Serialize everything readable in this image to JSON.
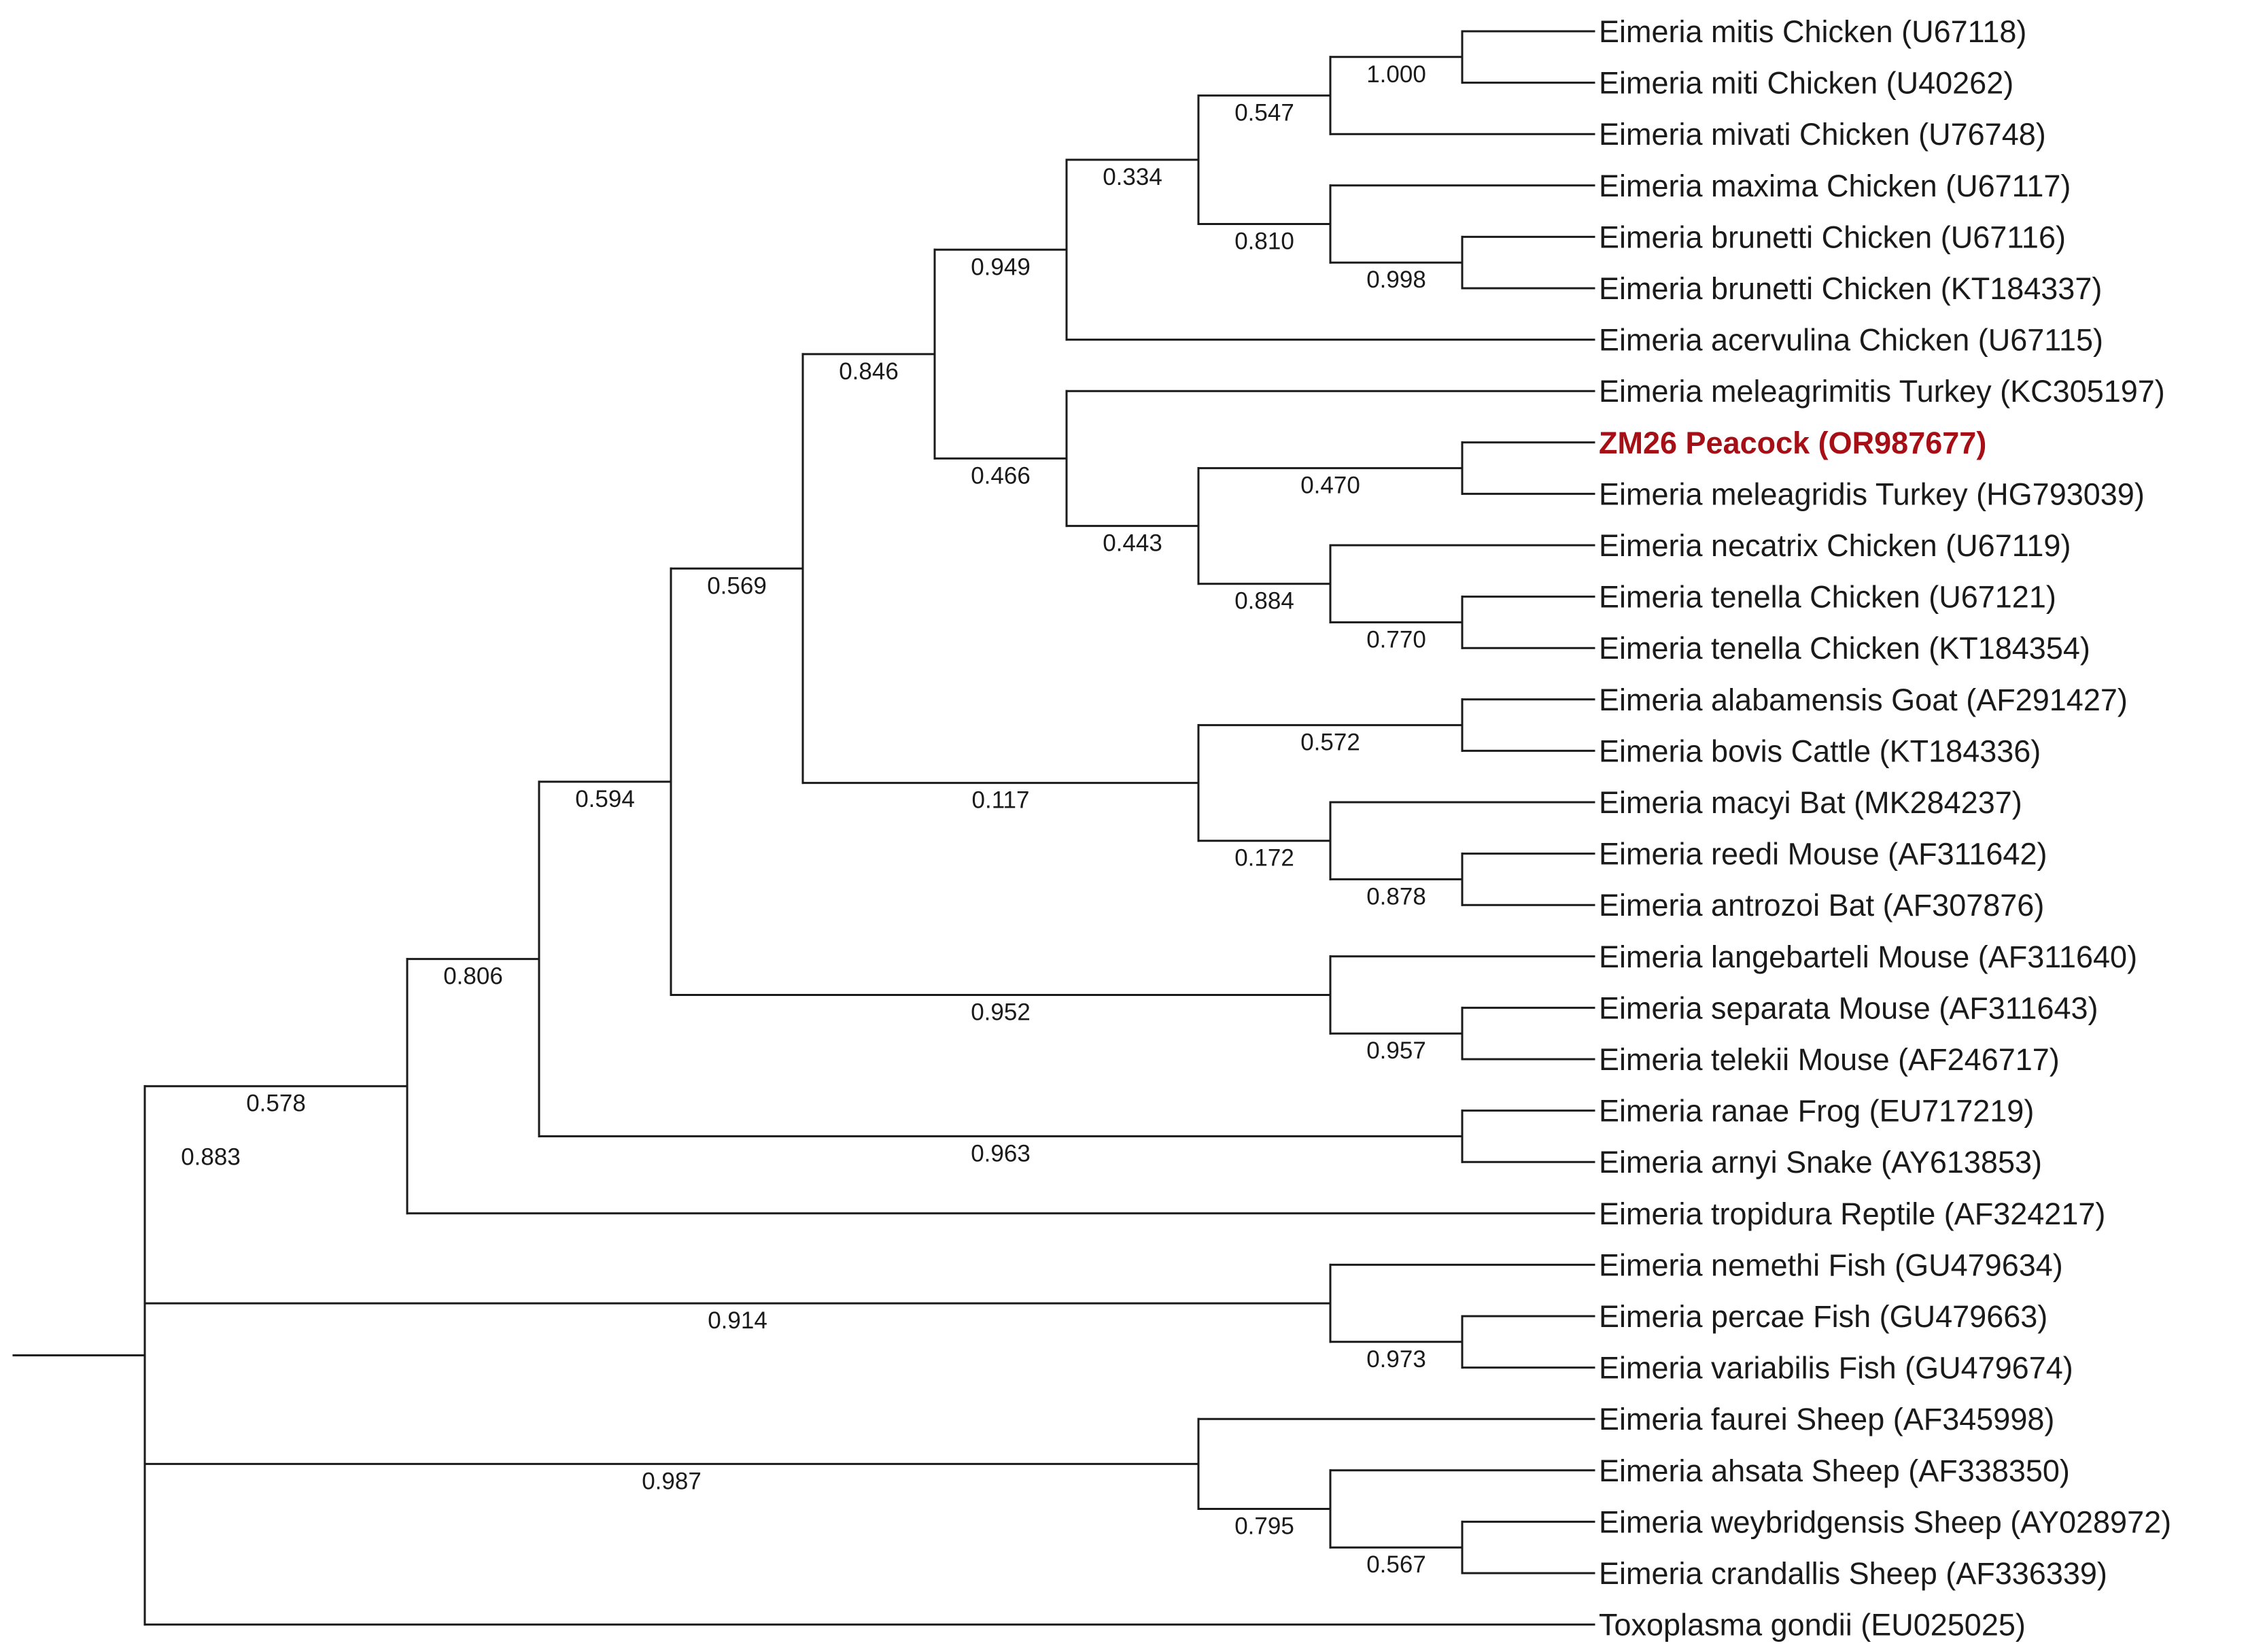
{
  "figure": {
    "type": "phylogenetic-tree",
    "highlight_color": "#a50f15",
    "line_color": "#1a1a1a"
  },
  "taxa": [
    {
      "id": "mitis_u67118",
      "label": "Eimeria mitis Chicken (U67118)"
    },
    {
      "id": "miti_u40262",
      "label": "Eimeria miti Chicken (U40262)"
    },
    {
      "id": "mivati_u76748",
      "label": "Eimeria mivati Chicken (U76748)"
    },
    {
      "id": "maxima_u67117",
      "label": "Eimeria maxima Chicken (U67117)"
    },
    {
      "id": "brunetti_u67116",
      "label": "Eimeria brunetti Chicken (U67116)"
    },
    {
      "id": "brunetti_kt184337",
      "label": "Eimeria brunetti Chicken (KT184337)"
    },
    {
      "id": "acervulina_u67115",
      "label": "Eimeria acervulina Chicken (U67115)"
    },
    {
      "id": "meleagrimitis_kc305197",
      "label": "Eimeria meleagrimitis Turkey (KC305197)"
    },
    {
      "id": "zm26_or987677",
      "label": "ZM26 Peacock (OR987677)",
      "highlight": true
    },
    {
      "id": "meleagridis_hg793039",
      "label": "Eimeria meleagridis Turkey (HG793039)"
    },
    {
      "id": "necatrix_u67119",
      "label": "Eimeria necatrix Chicken (U67119)"
    },
    {
      "id": "tenella_u67121",
      "label": "Eimeria tenella Chicken (U67121)"
    },
    {
      "id": "tenella_kt184354",
      "label": "Eimeria tenella Chicken (KT184354)"
    },
    {
      "id": "alabamensis_af291427",
      "label": "Eimeria alabamensis Goat (AF291427)"
    },
    {
      "id": "bovis_kt184336",
      "label": "Eimeria bovis Cattle (KT184336)"
    },
    {
      "id": "macyi_mk284237",
      "label": "Eimeria macyi Bat (MK284237)"
    },
    {
      "id": "reedi_af311642",
      "label": "Eimeria reedi Mouse (AF311642)"
    },
    {
      "id": "antrozoi_af307876",
      "label": "Eimeria antrozoi Bat (AF307876)"
    },
    {
      "id": "langebarteli_af311640",
      "label": "Eimeria langebarteli Mouse (AF311640)"
    },
    {
      "id": "separata_af311643",
      "label": "Eimeria separata Mouse (AF311643)"
    },
    {
      "id": "telekii_af246717",
      "label": "Eimeria telekii Mouse (AF246717)"
    },
    {
      "id": "ranae_eu717219",
      "label": "Eimeria ranae Frog (EU717219)"
    },
    {
      "id": "arnyi_ay613853",
      "label": "Eimeria arnyi Snake (AY613853)"
    },
    {
      "id": "tropidura_af324217",
      "label": "Eimeria tropidura Reptile (AF324217)"
    },
    {
      "id": "nemethi_gu479634",
      "label": "Eimeria nemethi Fish (GU479634)"
    },
    {
      "id": "percae_gu479663",
      "label": "Eimeria percae Fish (GU479663)"
    },
    {
      "id": "variabilis_gu479674",
      "label": "Eimeria variabilis Fish (GU479674)"
    },
    {
      "id": "faurei_af345998",
      "label": "Eimeria faurei Sheep (AF345998)"
    },
    {
      "id": "ahsata_af338350",
      "label": "Eimeria ahsata Sheep (AF338350)"
    },
    {
      "id": "weybridgensis_ay028972",
      "label": "Eimeria weybridgensis Sheep (AY028972)"
    },
    {
      "id": "crandallis_af336339",
      "label": "Eimeria crandallis Sheep (AF336339)"
    },
    {
      "id": "toxoplasma_eu025025",
      "label": "Toxoplasma gondii (EU025025)"
    }
  ],
  "tree": {
    "support": "0.883",
    "children": [
      {
        "support": "0.578",
        "children": [
          {
            "support": "0.806",
            "children": [
              {
                "support": "0.594",
                "children": [
                  {
                    "support": "0.569",
                    "children": [
                      {
                        "support": "0.846",
                        "children": [
                          {
                            "support": "0.949",
                            "children": [
                              {
                                "support": "0.334",
                                "children": [
                                  {
                                    "support": "0.547",
                                    "children": [
                                      {
                                        "support": "1.000",
                                        "children": [
                                          {
                                            "taxon": "mitis_u67118"
                                          },
                                          {
                                            "taxon": "miti_u40262"
                                          }
                                        ]
                                      },
                                      {
                                        "taxon": "mivati_u76748"
                                      }
                                    ]
                                  },
                                  {
                                    "support": "0.810",
                                    "children": [
                                      {
                                        "taxon": "maxima_u67117"
                                      },
                                      {
                                        "support": "0.998",
                                        "children": [
                                          {
                                            "taxon": "brunetti_u67116"
                                          },
                                          {
                                            "taxon": "brunetti_kt184337"
                                          }
                                        ]
                                      }
                                    ]
                                  }
                                ]
                              },
                              {
                                "taxon": "acervulina_u67115"
                              }
                            ]
                          },
                          {
                            "support": "0.466",
                            "children": [
                              {
                                "taxon": "meleagrimitis_kc305197"
                              },
                              {
                                "support": "0.443",
                                "children": [
                                  {
                                    "support": "0.470",
                                    "children": [
                                      {
                                        "taxon": "zm26_or987677"
                                      },
                                      {
                                        "taxon": "meleagridis_hg793039"
                                      }
                                    ]
                                  },
                                  {
                                    "support": "0.884",
                                    "children": [
                                      {
                                        "taxon": "necatrix_u67119"
                                      },
                                      {
                                        "support": "0.770",
                                        "children": [
                                          {
                                            "taxon": "tenella_u67121"
                                          },
                                          {
                                            "taxon": "tenella_kt184354"
                                          }
                                        ]
                                      }
                                    ]
                                  }
                                ]
                              }
                            ]
                          }
                        ]
                      },
                      {
                        "support": "0.117",
                        "children": [
                          {
                            "support": "0.572",
                            "children": [
                              {
                                "taxon": "alabamensis_af291427"
                              },
                              {
                                "taxon": "bovis_kt184336"
                              }
                            ]
                          },
                          {
                            "support": "0.172",
                            "children": [
                              {
                                "taxon": "macyi_mk284237"
                              },
                              {
                                "support": "0.878",
                                "children": [
                                  {
                                    "taxon": "reedi_af311642"
                                  },
                                  {
                                    "taxon": "antrozoi_af307876"
                                  }
                                ]
                              }
                            ]
                          }
                        ]
                      }
                    ]
                  },
                  {
                    "support": "0.952",
                    "children": [
                      {
                        "taxon": "langebarteli_af311640"
                      },
                      {
                        "support": "0.957",
                        "children": [
                          {
                            "taxon": "separata_af311643"
                          },
                          {
                            "taxon": "telekii_af246717"
                          }
                        ]
                      }
                    ]
                  }
                ]
              },
              {
                "support": "0.963",
                "children": [
                  {
                    "taxon": "ranae_eu717219"
                  },
                  {
                    "taxon": "arnyi_ay613853"
                  }
                ]
              }
            ]
          },
          {
            "taxon": "tropidura_af324217"
          }
        ]
      },
      {
        "support": "0.914",
        "children": [
          {
            "taxon": "nemethi_gu479634"
          },
          {
            "support": "0.973",
            "children": [
              {
                "taxon": "percae_gu479663"
              },
              {
                "taxon": "variabilis_gu479674"
              }
            ]
          }
        ]
      },
      {
        "support": "0.987",
        "children": [
          {
            "taxon": "faurei_af345998"
          },
          {
            "support": "0.795",
            "children": [
              {
                "taxon": "ahsata_af338350"
              },
              {
                "support": "0.567",
                "children": [
                  {
                    "taxon": "weybridgensis_ay028972"
                  },
                  {
                    "taxon": "crandallis_af336339"
                  }
                ]
              }
            ]
          }
        ]
      },
      {
        "taxon": "toxoplasma_eu025025"
      }
    ]
  }
}
